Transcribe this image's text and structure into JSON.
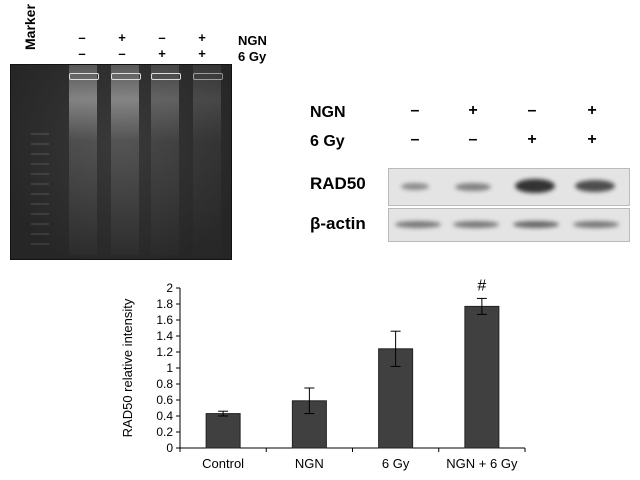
{
  "gel": {
    "marker_label": "Marker",
    "row1_label": "NGN",
    "row2_label": "6 Gy",
    "ngn": [
      "–",
      "+",
      "–",
      "+"
    ],
    "gy": [
      "–",
      "–",
      "+",
      "+"
    ]
  },
  "blot": {
    "row1_label": "NGN",
    "row2_label": "6 Gy",
    "ngn": [
      "–",
      "+",
      "–",
      "+"
    ],
    "gy": [
      "–",
      "–",
      "+",
      "+"
    ],
    "rad50_label": "RAD50",
    "actin_label": "β-actin"
  },
  "chart_data": {
    "type": "bar",
    "categories": [
      "Control",
      "NGN",
      "6 Gy",
      "NGN + 6 Gy"
    ],
    "values": [
      0.43,
      0.59,
      1.24,
      1.77
    ],
    "errors": [
      0.03,
      0.16,
      0.22,
      0.1
    ],
    "annotations": [
      "",
      "",
      "",
      "#"
    ],
    "ylabel": "RAD50 relative intensity",
    "xlabel": "",
    "ylim": [
      0,
      2
    ],
    "yticks": [
      "0",
      "0.2",
      "0.4",
      "0.6",
      "0.8",
      "1",
      "1.2",
      "1.4",
      "1.6",
      "1.8",
      "2"
    ],
    "bar_color": "#404040",
    "grid": false
  }
}
